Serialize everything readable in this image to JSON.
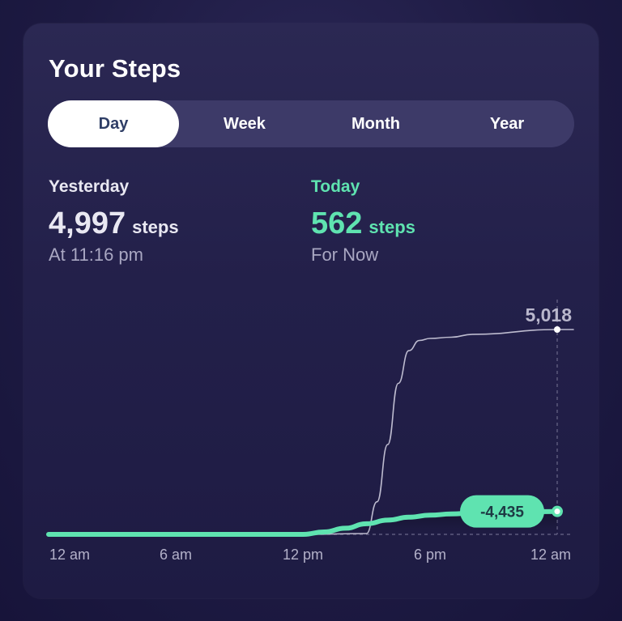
{
  "title": "Your Steps",
  "tabs": [
    {
      "label": "Day",
      "active": true
    },
    {
      "label": "Week",
      "active": false
    },
    {
      "label": "Month",
      "active": false
    },
    {
      "label": "Year",
      "active": false
    }
  ],
  "yesterday": {
    "label": "Yesterday",
    "steps": "4,997",
    "unit": "steps",
    "sub": "At 11:16 pm"
  },
  "today": {
    "label": "Today",
    "steps": "562",
    "unit": "steps",
    "sub": "For Now"
  },
  "colors": {
    "accent": "#5fe3b0",
    "yesterday_line": "#bdbbcf",
    "label_white": "#ffffff",
    "muted": "#a9a7c2"
  },
  "chart_data": {
    "type": "line",
    "x_unit": "hours since 12 am",
    "x_range": [
      0,
      24
    ],
    "y_max_shown": 5018,
    "x_ticks": [
      {
        "x": 0,
        "label": "12 am"
      },
      {
        "x": 6,
        "label": "6 am"
      },
      {
        "x": 12,
        "label": "12 pm"
      },
      {
        "x": 18,
        "label": "6 pm"
      },
      {
        "x": 24,
        "label": "12 am"
      }
    ],
    "series": [
      {
        "x": [
          0,
          12,
          15,
          15.5,
          16,
          16.5,
          17,
          17.5,
          18,
          19,
          20,
          24
        ],
        "y": [
          0,
          0,
          20,
          800,
          2200,
          3700,
          4500,
          4750,
          4800,
          4830,
          4900,
          5018
        ]
      },
      {
        "x": [
          0,
          12,
          13,
          14,
          15,
          16,
          17,
          18,
          19,
          20,
          24
        ],
        "y": [
          0,
          0,
          60,
          150,
          260,
          350,
          420,
          470,
          500,
          520,
          562
        ]
      }
    ],
    "end_label": "5,018",
    "difference_label": "-4,435"
  }
}
